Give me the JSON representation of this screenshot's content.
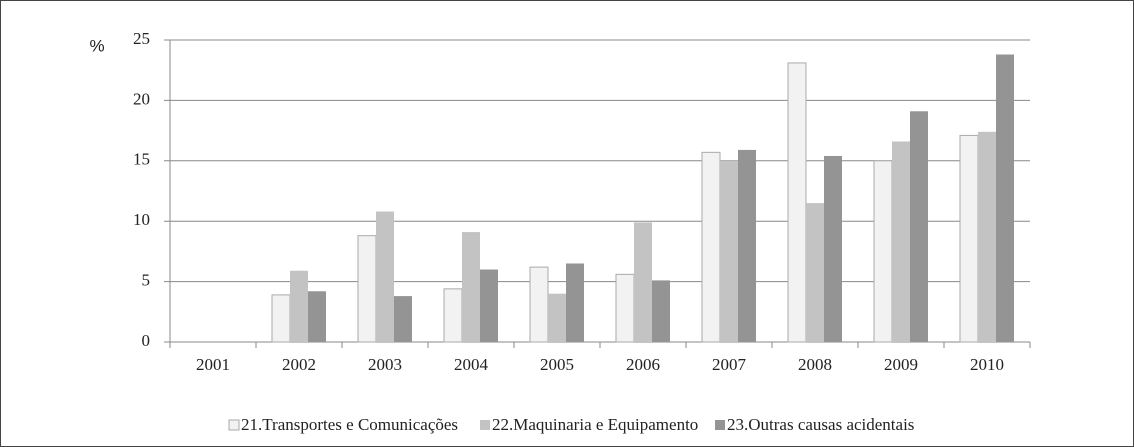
{
  "chart_data": {
    "type": "bar",
    "y_label": "%",
    "categories": [
      "2001",
      "2002",
      "2003",
      "2004",
      "2005",
      "2006",
      "2007",
      "2008",
      "2009",
      "2010"
    ],
    "series": [
      {
        "name": "21.Transportes e Comunicações",
        "color": "#f2f2f2",
        "values": [
          0,
          3.9,
          8.8,
          4.4,
          6.2,
          5.6,
          15.7,
          23.1,
          15.0,
          17.1
        ]
      },
      {
        "name": "22.Maquinaria e Equipamento",
        "color": "#c3c3c3",
        "values": [
          0,
          5.9,
          10.8,
          9.1,
          4.0,
          9.9,
          15.0,
          11.5,
          16.6,
          17.4
        ]
      },
      {
        "name": "23.Outras causas acidentais",
        "color": "#949494",
        "values": [
          0,
          4.2,
          3.8,
          6.0,
          6.5,
          5.1,
          15.9,
          15.4,
          19.1,
          23.8
        ]
      }
    ],
    "ylim": [
      0,
      25
    ],
    "yticks": [
      0,
      5,
      10,
      15,
      20,
      25
    ],
    "grid": true,
    "legend": "bottom"
  }
}
